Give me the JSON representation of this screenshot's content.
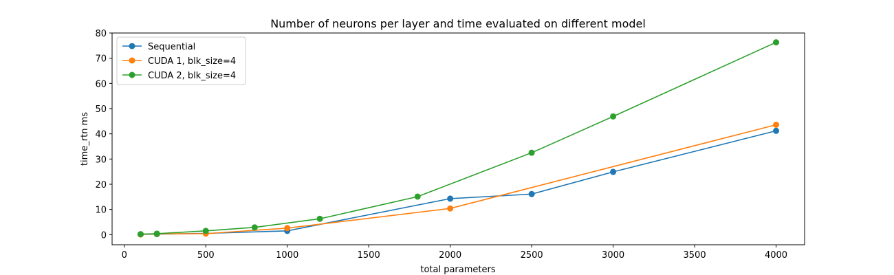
{
  "chart_data": {
    "type": "line",
    "title": "Number of neurons per layer and time evaluated on different model",
    "xlabel": "total parameters",
    "ylabel": "time_rtn ms",
    "xlim": [
      -75,
      4175
    ],
    "ylim": [
      -4,
      80
    ],
    "xticks": [
      0,
      500,
      1000,
      1500,
      2000,
      2500,
      3000,
      3500,
      4000
    ],
    "yticks": [
      0,
      10,
      20,
      30,
      40,
      50,
      60,
      70,
      80
    ],
    "grid": false,
    "legend_position": "top-left",
    "series": [
      {
        "name": "Sequential",
        "color": "#1f77b4",
        "x": [
          100,
          200,
          500,
          1000,
          2000,
          2500,
          3000,
          4000
        ],
        "y": [
          0.1,
          0.2,
          0.5,
          1.5,
          14.3,
          16.1,
          24.9,
          41.2
        ]
      },
      {
        "name": "CUDA 1, blk_size=4",
        "color": "#ff7f0e",
        "x": [
          100,
          200,
          500,
          1000,
          2000,
          4000
        ],
        "y": [
          0.1,
          0.3,
          0.4,
          2.6,
          10.4,
          43.6
        ]
      },
      {
        "name": "CUDA 2, blk_size=4",
        "color": "#2ca02c",
        "x": [
          100,
          200,
          500,
          800,
          1200,
          1800,
          2500,
          3000,
          4000
        ],
        "y": [
          0.2,
          0.4,
          1.5,
          2.9,
          6.3,
          15.1,
          32.5,
          46.9,
          76.3
        ]
      }
    ]
  }
}
